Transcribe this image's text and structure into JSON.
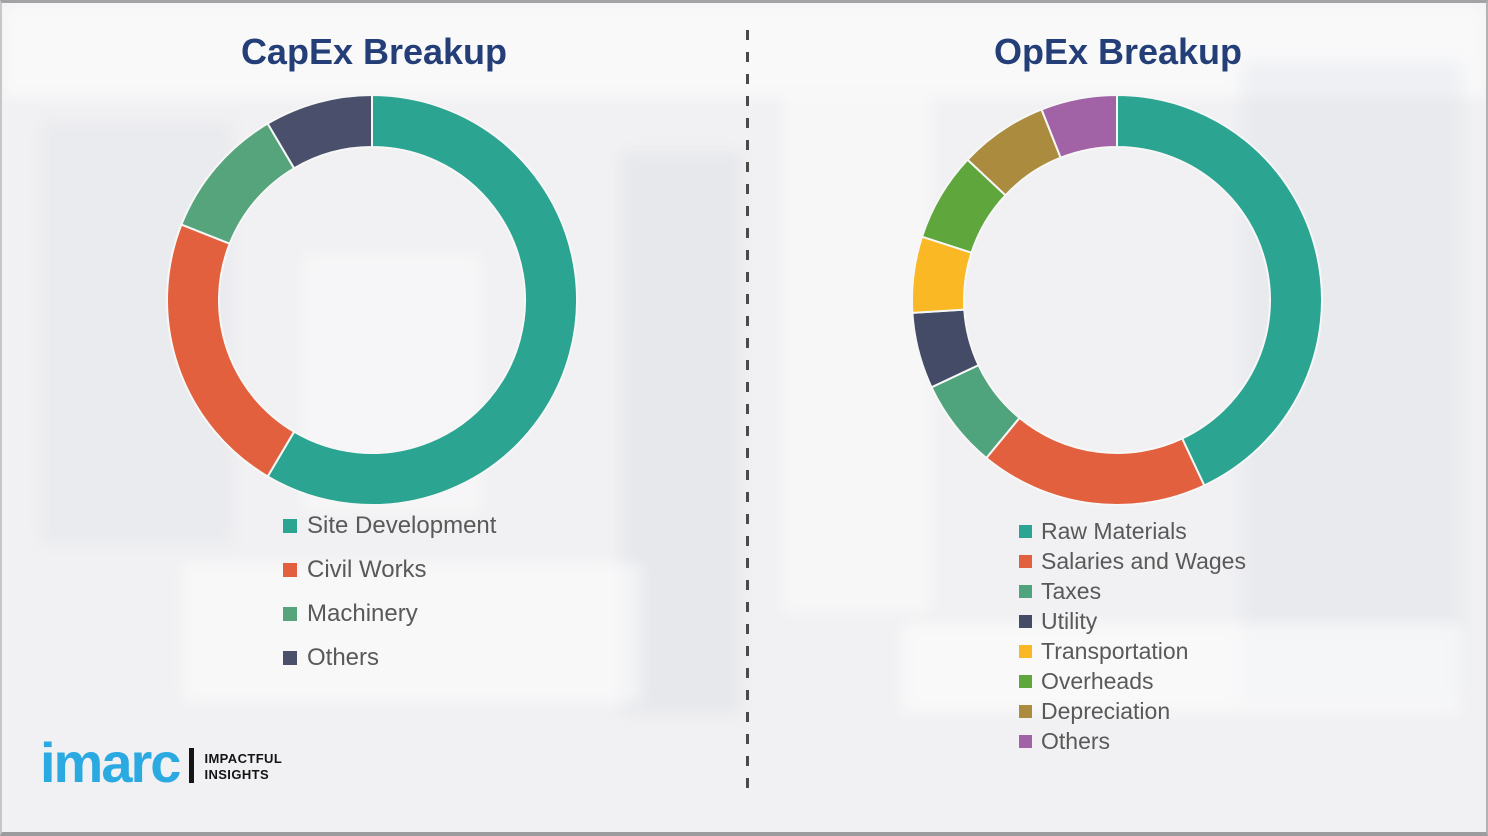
{
  "style": {
    "background": "#f1f1f3",
    "title_color": "#243e78",
    "legend_text_color": "#595959",
    "divider_color": "#4a4a4a",
    "segment_gap_color": "#f7f7f7"
  },
  "chart_data": [
    {
      "type": "donut",
      "title": "CapEx Breakup",
      "categories": [
        "Site Development",
        "Civil Works",
        "Machinery",
        "Others"
      ],
      "values": [
        58.5,
        22.5,
        10.5,
        8.5
      ],
      "unit": "percent-estimated-from-arc-angles",
      "colors": [
        "#2ba492",
        "#e2603d",
        "#55a47b",
        "#4a506b"
      ],
      "start_angle_deg": 0,
      "direction": "clockwise",
      "legend_position": "below-left"
    },
    {
      "type": "donut",
      "title": "OpEx Breakup",
      "categories": [
        "Raw Materials",
        "Salaries and Wages",
        "Taxes",
        "Utility",
        "Transportation",
        "Overheads",
        "Depreciation",
        "Others"
      ],
      "values": [
        43,
        18,
        7,
        6,
        6,
        7,
        7,
        6
      ],
      "unit": "percent-estimated-from-arc-angles",
      "colors": [
        "#2ba492",
        "#e2603d",
        "#4fa37d",
        "#444b66",
        "#f9b824",
        "#5fa73c",
        "#ab8b3e",
        "#a163a5"
      ],
      "start_angle_deg": 0,
      "direction": "clockwise",
      "legend_position": "below-left"
    }
  ],
  "logo": {
    "brand": "imarc",
    "tagline": [
      "IMPACTFUL",
      "INSIGHTS"
    ],
    "brand_color": "#2baae2",
    "tagline_color": "#141414"
  }
}
